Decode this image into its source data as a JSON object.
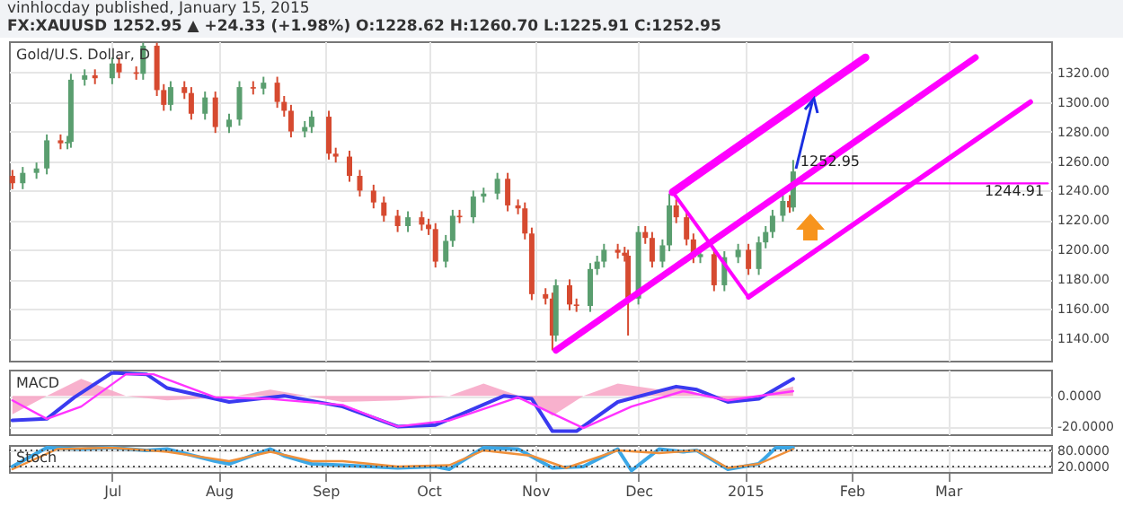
{
  "chart_data": [
    {
      "type": "candlestick",
      "title": "FX:XAUUSD 1252.95 ▲ +24.33 (+1.98%) O:1228.62 H:1260.70 L:1225.91 C:1252.95",
      "subtitle": "vinhlocday published, January 15, 2015",
      "x": [
        "2014-06-02",
        "2014-06-05",
        "2014-06-09",
        "2014-06-12",
        "2014-06-16",
        "2014-06-18",
        "2014-06-19",
        "2014-06-23",
        "2014-06-26",
        "2014-07-01",
        "2014-07-03",
        "2014-07-08",
        "2014-07-10",
        "2014-07-14",
        "2014-07-16",
        "2014-07-18",
        "2014-07-22",
        "2014-07-24",
        "2014-07-28",
        "2014-07-31",
        "2014-08-04",
        "2014-08-07",
        "2014-08-11",
        "2014-08-14",
        "2014-08-18",
        "2014-08-20",
        "2014-08-22",
        "2014-08-26",
        "2014-08-28",
        "2014-09-02",
        "2014-09-04",
        "2014-09-08",
        "2014-09-11",
        "2014-09-15",
        "2014-09-18",
        "2014-09-22",
        "2014-09-25",
        "2014-09-29",
        "2014-10-01",
        "2014-10-03",
        "2014-10-06",
        "2014-10-08",
        "2014-10-10",
        "2014-10-14",
        "2014-10-17",
        "2014-10-21",
        "2014-10-24",
        "2014-10-27",
        "2014-10-29",
        "2014-10-31",
        "2014-11-04",
        "2014-11-06",
        "2014-11-07",
        "2014-11-11",
        "2014-11-13",
        "2014-11-17",
        "2014-11-19",
        "2014-11-21",
        "2014-11-25",
        "2014-11-27",
        "2014-11-28",
        "2014-12-01",
        "2014-12-03",
        "2014-12-05",
        "2014-12-08",
        "2014-12-10",
        "2014-12-12",
        "2014-12-15",
        "2014-12-17",
        "2014-12-19",
        "2014-12-23",
        "2014-12-26",
        "2014-12-30",
        "2015-01-02",
        "2015-01-05",
        "2015-01-07",
        "2015-01-09",
        "2015-01-12",
        "2015-01-14",
        "2015-01-15"
      ],
      "ohlc": [
        [
          1250,
          1254,
          1241,
          1245
        ],
        [
          1245,
          1256,
          1241,
          1252
        ],
        [
          1252,
          1259,
          1248,
          1255
        ],
        [
          1255,
          1278,
          1251,
          1274
        ],
        [
          1274,
          1278,
          1268,
          1272
        ],
        [
          1272,
          1277,
          1268,
          1273
        ],
        [
          1273,
          1319,
          1269,
          1315
        ],
        [
          1315,
          1322,
          1311,
          1318
        ],
        [
          1318,
          1322,
          1312,
          1316
        ],
        [
          1316,
          1330,
          1312,
          1326
        ],
        [
          1326,
          1330,
          1316,
          1320
        ],
        [
          1320,
          1324,
          1315,
          1319
        ],
        [
          1319,
          1340,
          1315,
          1338
        ],
        [
          1338,
          1340,
          1304,
          1308
        ],
        [
          1308,
          1312,
          1294,
          1298
        ],
        [
          1298,
          1314,
          1294,
          1310
        ],
        [
          1310,
          1314,
          1302,
          1306
        ],
        [
          1306,
          1310,
          1288,
          1292
        ],
        [
          1292,
          1307,
          1288,
          1303
        ],
        [
          1303,
          1307,
          1279,
          1283
        ],
        [
          1283,
          1292,
          1279,
          1288
        ],
        [
          1288,
          1314,
          1284,
          1310
        ],
        [
          1310,
          1314,
          1305,
          1309
        ],
        [
          1309,
          1317,
          1305,
          1313
        ],
        [
          1313,
          1317,
          1296,
          1300
        ],
        [
          1300,
          1304,
          1290,
          1294
        ],
        [
          1294,
          1298,
          1276,
          1280
        ],
        [
          1280,
          1287,
          1276,
          1283
        ],
        [
          1283,
          1294,
          1279,
          1290
        ],
        [
          1290,
          1294,
          1261,
          1265
        ],
        [
          1265,
          1269,
          1259,
          1263
        ],
        [
          1263,
          1267,
          1246,
          1250
        ],
        [
          1250,
          1254,
          1236,
          1240
        ],
        [
          1240,
          1244,
          1228,
          1232
        ],
        [
          1232,
          1236,
          1219,
          1223
        ],
        [
          1223,
          1227,
          1212,
          1216
        ],
        [
          1216,
          1226,
          1212,
          1222
        ],
        [
          1222,
          1226,
          1213,
          1217
        ],
        [
          1217,
          1221,
          1210,
          1214
        ],
        [
          1214,
          1218,
          1188,
          1192
        ],
        [
          1192,
          1210,
          1188,
          1206
        ],
        [
          1206,
          1227,
          1202,
          1223
        ],
        [
          1223,
          1227,
          1218,
          1222
        ],
        [
          1222,
          1240,
          1218,
          1236
        ],
        [
          1236,
          1242,
          1232,
          1238
        ],
        [
          1238,
          1252,
          1234,
          1248
        ],
        [
          1248,
          1252,
          1226,
          1230
        ],
        [
          1230,
          1234,
          1224,
          1228
        ],
        [
          1228,
          1232,
          1207,
          1211
        ],
        [
          1211,
          1215,
          1166,
          1170
        ],
        [
          1170,
          1174,
          1163,
          1167
        ],
        [
          1167,
          1171,
          1132,
          1142
        ],
        [
          1142,
          1180,
          1138,
          1176
        ],
        [
          1176,
          1180,
          1159,
          1163
        ],
        [
          1163,
          1167,
          1158,
          1162
        ],
        [
          1162,
          1191,
          1158,
          1187
        ],
        [
          1187,
          1196,
          1183,
          1192
        ],
        [
          1192,
          1204,
          1188,
          1200
        ],
        [
          1200,
          1204,
          1194,
          1198
        ],
        [
          1198,
          1202,
          1192,
          1196
        ],
        [
          1196,
          1200,
          1142,
          1167
        ],
        [
          1167,
          1216,
          1163,
          1212
        ],
        [
          1212,
          1216,
          1204,
          1208
        ],
        [
          1208,
          1212,
          1188,
          1192
        ],
        [
          1192,
          1207,
          1188,
          1203
        ],
        [
          1203,
          1238,
          1199,
          1230
        ],
        [
          1230,
          1234,
          1218,
          1222
        ],
        [
          1222,
          1226,
          1203,
          1207
        ],
        [
          1207,
          1211,
          1191,
          1195
        ],
        [
          1195,
          1201,
          1191,
          1197
        ],
        [
          1197,
          1201,
          1172,
          1176
        ],
        [
          1176,
          1199,
          1172,
          1195
        ],
        [
          1195,
          1204,
          1191,
          1200
        ],
        [
          1200,
          1204,
          1183,
          1187
        ],
        [
          1187,
          1209,
          1183,
          1205
        ],
        [
          1205,
          1216,
          1201,
          1212
        ],
        [
          1212,
          1227,
          1208,
          1223
        ],
        [
          1223,
          1237,
          1219,
          1233
        ],
        [
          1233,
          1237,
          1225,
          1228.62
        ],
        [
          1228.62,
          1260.7,
          1225.91,
          1252.95
        ]
      ],
      "series": [
        {
          "type": "line",
          "color": "#ff00ff",
          "x": [
            "2014-12-11",
            "2015-02-05"
          ],
          "values": [
            1239,
            1330
          ]
        },
        {
          "type": "line",
          "color": "#ff00ff",
          "x": [
            "2014-11-07",
            "2015-03-09"
          ],
          "values": [
            1132,
            1330
          ]
        },
        {
          "type": "line",
          "color": "#ff00ff",
          "x": [
            "2015-01-02",
            "2015-03-25"
          ],
          "values": [
            1168,
            1300
          ]
        },
        {
          "type": "line",
          "color": "#ff00ff",
          "x": [
            "2014-12-11",
            "2015-01-02"
          ],
          "values": [
            1239,
            1168
          ]
        },
        {
          "type": "line",
          "color": "#ff00ff",
          "x": [
            "2015-01-15",
            "2015-03-30"
          ],
          "values": [
            1244.91,
            1244.91
          ]
        }
      ],
      "annotations": [
        "Gold/U.S. Dollar, D",
        {
          "text": "1252.95",
          "x": "2015-01-15",
          "y": 1252.95
        },
        {
          "text": "1244.91",
          "x": "2015-03-30",
          "y": 1244.91
        }
      ],
      "xlim": [
        "2014-06-01",
        "2015-03-31"
      ],
      "xticks": [
        {
          "value": "2014-07-01",
          "label": null
        },
        {
          "value": "2014-08-01",
          "label": null
        },
        {
          "value": "2014-09-01",
          "label": null
        },
        {
          "value": "2014-10-01",
          "label": null
        },
        {
          "value": "2014-11-01",
          "label": null
        },
        {
          "value": "2014-12-01",
          "label": null
        },
        {
          "value": "2015-01-01",
          "label": null
        },
        {
          "value": "2015-02-01",
          "label": null
        },
        {
          "value": "2015-03-01",
          "label": null
        }
      ],
      "ylim": [
        1125,
        1341
      ],
      "yticks": [
        {
          "value": 1140,
          "label": "1140.00"
        },
        {
          "value": 1160,
          "label": "1160.00"
        },
        {
          "value": 1180,
          "label": "1180.00"
        },
        {
          "value": 1200,
          "label": "1200.00"
        },
        {
          "value": 1220,
          "label": "1220.00"
        },
        {
          "value": 1240,
          "label": "1240.00"
        },
        {
          "value": 1260,
          "label": "1260.00"
        },
        {
          "value": 1280,
          "label": "1280.00"
        },
        {
          "value": 1300,
          "label": "1300.00"
        },
        {
          "value": 1320,
          "label": "1320.00"
        }
      ],
      "grid": true,
      "tick_labels": "y"
    },
    {
      "type": "line",
      "series": [
        {
          "type": "area",
          "color": "#f7a3c4",
          "x": [
            "2014-06-02",
            "2014-06-12",
            "2014-06-22",
            "2014-07-05",
            "2014-07-17",
            "2014-08-04",
            "2014-08-16",
            "2014-09-06",
            "2014-09-22",
            "2014-10-07",
            "2014-10-17",
            "2014-10-31",
            "2014-11-06",
            "2014-11-15",
            "2014-11-25",
            "2014-12-07",
            "2014-12-14",
            "2014-12-27",
            "2015-01-05",
            "2015-01-15"
          ],
          "values": [
            -12,
            0,
            11,
            0,
            -3,
            -1,
            4,
            -4,
            -3,
            0,
            8,
            -3,
            -13,
            0,
            8,
            4,
            5,
            -5,
            0,
            6
          ]
        },
        {
          "type": "line",
          "color": "#3a3af0",
          "x": [
            "2014-06-02",
            "2014-06-12",
            "2014-06-20",
            "2014-07-01",
            "2014-07-11",
            "2014-07-17",
            "2014-08-04",
            "2014-08-20",
            "2014-09-06",
            "2014-09-22",
            "2014-10-03",
            "2014-10-23",
            "2014-10-31",
            "2014-11-06",
            "2014-11-13",
            "2014-11-25",
            "2014-12-12",
            "2014-12-18",
            "2014-12-27",
            "2015-01-05",
            "2015-01-15"
          ],
          "values": [
            -16,
            -15,
            -1,
            15,
            14,
            5,
            -4,
            0,
            -7,
            -20,
            -19,
            0,
            -2,
            -23,
            -23,
            -4,
            6,
            4,
            -4,
            -2,
            11
          ]
        },
        {
          "type": "line",
          "color": "#ff33ff",
          "x": [
            "2014-06-02",
            "2014-06-12",
            "2014-06-22",
            "2014-07-05",
            "2014-07-13",
            "2014-07-31",
            "2014-08-16",
            "2014-09-06",
            "2014-09-22",
            "2014-10-07",
            "2014-10-27",
            "2014-11-15",
            "2014-11-29",
            "2014-12-14",
            "2014-12-27",
            "2015-01-15"
          ],
          "values": [
            -3,
            -15,
            -7,
            14,
            14,
            -1,
            -2,
            -6,
            -20,
            -16,
            -1,
            -21,
            -7,
            3,
            -3,
            3
          ]
        }
      ],
      "annotations": [
        "MACD"
      ],
      "xlim": [
        "2014-06-01",
        "2015-03-31"
      ],
      "xticks": [
        {
          "value": "2014-07-01",
          "label": null
        },
        {
          "value": "2014-08-01",
          "label": null
        },
        {
          "value": "2014-09-01",
          "label": null
        },
        {
          "value": "2014-10-01",
          "label": null
        },
        {
          "value": "2014-11-01",
          "label": null
        },
        {
          "value": "2014-12-01",
          "label": null
        },
        {
          "value": "2015-01-01",
          "label": null
        },
        {
          "value": "2015-02-01",
          "label": null
        },
        {
          "value": "2015-03-01",
          "label": null
        }
      ],
      "ylim": [
        -25,
        17
      ],
      "yticks": [
        {
          "value": 0,
          "label": "0.0000"
        },
        {
          "value": -20,
          "label": "-20.0000"
        }
      ],
      "grid": true,
      "tick_labels": "y"
    },
    {
      "type": "line",
      "series": [
        {
          "type": "line",
          "color": "#3ba7e6",
          "x": [
            "2014-06-02",
            "2014-06-12",
            "2014-06-22",
            "2014-07-01",
            "2014-07-11",
            "2014-07-17",
            "2014-07-31",
            "2014-08-04",
            "2014-08-16",
            "2014-08-20",
            "2014-08-28",
            "2014-09-06",
            "2014-09-22",
            "2014-10-03",
            "2014-10-07",
            "2014-10-17",
            "2014-10-27",
            "2014-11-06",
            "2014-11-15",
            "2014-11-25",
            "2014-11-29",
            "2014-12-07",
            "2014-12-14",
            "2014-12-18",
            "2014-12-27",
            "2015-01-05",
            "2015-01-10",
            "2015-01-15"
          ],
          "values": [
            20,
            90,
            85,
            90,
            80,
            85,
            40,
            30,
            85,
            60,
            30,
            25,
            15,
            20,
            10,
            90,
            85,
            15,
            20,
            85,
            5,
            85,
            75,
            80,
            10,
            30,
            90,
            90
          ]
        },
        {
          "type": "line",
          "color": "#f0903a",
          "x": [
            "2014-06-02",
            "2014-06-15",
            "2014-07-01",
            "2014-07-17",
            "2014-08-04",
            "2014-08-16",
            "2014-08-28",
            "2014-09-06",
            "2014-09-22",
            "2014-10-07",
            "2014-10-17",
            "2014-10-31",
            "2014-11-10",
            "2014-11-25",
            "2014-12-07",
            "2014-12-18",
            "2014-12-27",
            "2015-01-05",
            "2015-01-15"
          ],
          "values": [
            10,
            85,
            90,
            75,
            40,
            75,
            40,
            40,
            20,
            25,
            80,
            60,
            15,
            80,
            70,
            80,
            15,
            30,
            85
          ]
        }
      ],
      "annotations": [
        "Stoch"
      ],
      "ref_lines": [
        {
          "axis": "y",
          "value": 80,
          "line_style": "dotted",
          "color": "#555555"
        },
        {
          "axis": "y",
          "value": 20,
          "line_style": "dotted",
          "color": "#555555"
        }
      ],
      "xlim": [
        "2014-06-01",
        "2015-03-31"
      ],
      "xticks": [
        {
          "value": "2014-07-01",
          "label": "Jul"
        },
        {
          "value": "2014-08-01",
          "label": "Aug"
        },
        {
          "value": "2014-09-01",
          "label": "Sep"
        },
        {
          "value": "2014-10-01",
          "label": "Oct"
        },
        {
          "value": "2014-11-01",
          "label": "Nov"
        },
        {
          "value": "2014-12-01",
          "label": "Dec"
        },
        {
          "value": "2015-01-01",
          "label": "2015"
        },
        {
          "value": "2015-02-01",
          "label": "Feb"
        },
        {
          "value": "2015-03-01",
          "label": "Mar"
        }
      ],
      "ylim": [
        0,
        100
      ],
      "yticks": [
        {
          "value": 80,
          "label": "80.0000"
        },
        {
          "value": 20,
          "label": "20.0000"
        }
      ],
      "grid": true
    }
  ]
}
